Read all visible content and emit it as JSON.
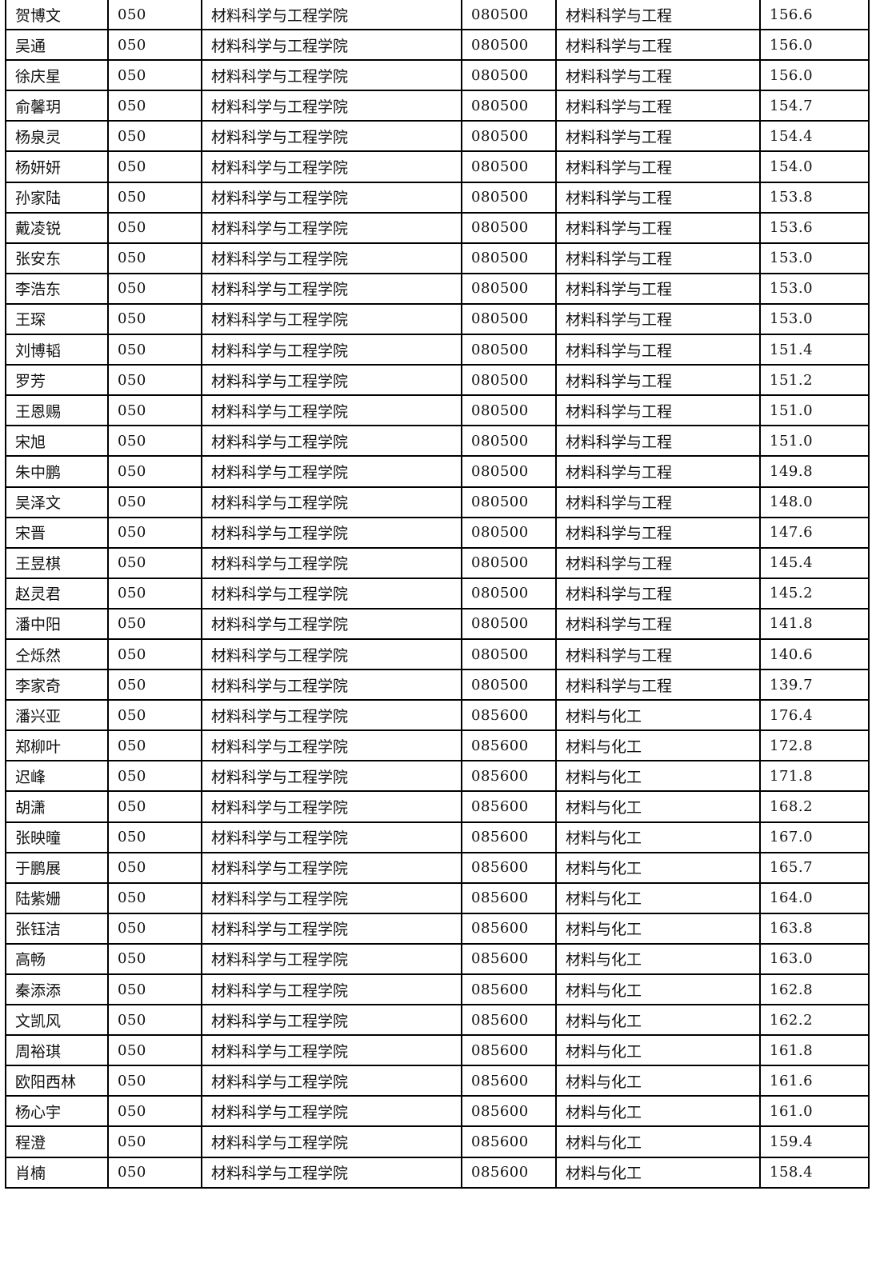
{
  "table": {
    "rows": [
      [
        "贺博文",
        "050",
        "材料科学与工程学院",
        "080500",
        "材料科学与工程",
        "156.6"
      ],
      [
        "吴通",
        "050",
        "材料科学与工程学院",
        "080500",
        "材料科学与工程",
        "156.0"
      ],
      [
        "徐庆星",
        "050",
        "材料科学与工程学院",
        "080500",
        "材料科学与工程",
        "156.0"
      ],
      [
        "俞馨玥",
        "050",
        "材料科学与工程学院",
        "080500",
        "材料科学与工程",
        "154.7"
      ],
      [
        "杨泉灵",
        "050",
        "材料科学与工程学院",
        "080500",
        "材料科学与工程",
        "154.4"
      ],
      [
        "杨妍妍",
        "050",
        "材料科学与工程学院",
        "080500",
        "材料科学与工程",
        "154.0"
      ],
      [
        "孙家陆",
        "050",
        "材料科学与工程学院",
        "080500",
        "材料科学与工程",
        "153.8"
      ],
      [
        "戴凌锐",
        "050",
        "材料科学与工程学院",
        "080500",
        "材料科学与工程",
        "153.6"
      ],
      [
        "张安东",
        "050",
        "材料科学与工程学院",
        "080500",
        "材料科学与工程",
        "153.0"
      ],
      [
        "李浩东",
        "050",
        "材料科学与工程学院",
        "080500",
        "材料科学与工程",
        "153.0"
      ],
      [
        "王琛",
        "050",
        "材料科学与工程学院",
        "080500",
        "材料科学与工程",
        "153.0"
      ],
      [
        "刘博韬",
        "050",
        "材料科学与工程学院",
        "080500",
        "材料科学与工程",
        "151.4"
      ],
      [
        "罗芳",
        "050",
        "材料科学与工程学院",
        "080500",
        "材料科学与工程",
        "151.2"
      ],
      [
        "王恩赐",
        "050",
        "材料科学与工程学院",
        "080500",
        "材料科学与工程",
        "151.0"
      ],
      [
        "宋旭",
        "050",
        "材料科学与工程学院",
        "080500",
        "材料科学与工程",
        "151.0"
      ],
      [
        "朱中鹏",
        "050",
        "材料科学与工程学院",
        "080500",
        "材料科学与工程",
        "149.8"
      ],
      [
        "吴泽文",
        "050",
        "材料科学与工程学院",
        "080500",
        "材料科学与工程",
        "148.0"
      ],
      [
        "宋晋",
        "050",
        "材料科学与工程学院",
        "080500",
        "材料科学与工程",
        "147.6"
      ],
      [
        "王昱棋",
        "050",
        "材料科学与工程学院",
        "080500",
        "材料科学与工程",
        "145.4"
      ],
      [
        "赵灵君",
        "050",
        "材料科学与工程学院",
        "080500",
        "材料科学与工程",
        "145.2"
      ],
      [
        "潘中阳",
        "050",
        "材料科学与工程学院",
        "080500",
        "材料科学与工程",
        "141.8"
      ],
      [
        "仝烁然",
        "050",
        "材料科学与工程学院",
        "080500",
        "材料科学与工程",
        "140.6"
      ],
      [
        "李家奇",
        "050",
        "材料科学与工程学院",
        "080500",
        "材料科学与工程",
        "139.7"
      ],
      [
        "潘兴亚",
        "050",
        "材料科学与工程学院",
        "085600",
        "材料与化工",
        "176.4"
      ],
      [
        "郑柳叶",
        "050",
        "材料科学与工程学院",
        "085600",
        "材料与化工",
        "172.8"
      ],
      [
        "迟峰",
        "050",
        "材料科学与工程学院",
        "085600",
        "材料与化工",
        "171.8"
      ],
      [
        "胡潇",
        "050",
        "材料科学与工程学院",
        "085600",
        "材料与化工",
        "168.2"
      ],
      [
        "张映曈",
        "050",
        "材料科学与工程学院",
        "085600",
        "材料与化工",
        "167.0"
      ],
      [
        "于鹏展",
        "050",
        "材料科学与工程学院",
        "085600",
        "材料与化工",
        "165.7"
      ],
      [
        "陆紫姗",
        "050",
        "材料科学与工程学院",
        "085600",
        "材料与化工",
        "164.0"
      ],
      [
        "张钰洁",
        "050",
        "材料科学与工程学院",
        "085600",
        "材料与化工",
        "163.8"
      ],
      [
        "高畅",
        "050",
        "材料科学与工程学院",
        "085600",
        "材料与化工",
        "163.0"
      ],
      [
        "秦添添",
        "050",
        "材料科学与工程学院",
        "085600",
        "材料与化工",
        "162.8"
      ],
      [
        "文凯风",
        "050",
        "材料科学与工程学院",
        "085600",
        "材料与化工",
        "162.2"
      ],
      [
        "周裕琪",
        "050",
        "材料科学与工程学院",
        "085600",
        "材料与化工",
        "161.8"
      ],
      [
        "欧阳西林",
        "050",
        "材料科学与工程学院",
        "085600",
        "材料与化工",
        "161.6"
      ],
      [
        "杨心宇",
        "050",
        "材料科学与工程学院",
        "085600",
        "材料与化工",
        "161.0"
      ],
      [
        "程澄",
        "050",
        "材料科学与工程学院",
        "085600",
        "材料与化工",
        "159.4"
      ],
      [
        "肖楠",
        "050",
        "材料科学与工程学院",
        "085600",
        "材料与化工",
        "158.4"
      ]
    ]
  }
}
